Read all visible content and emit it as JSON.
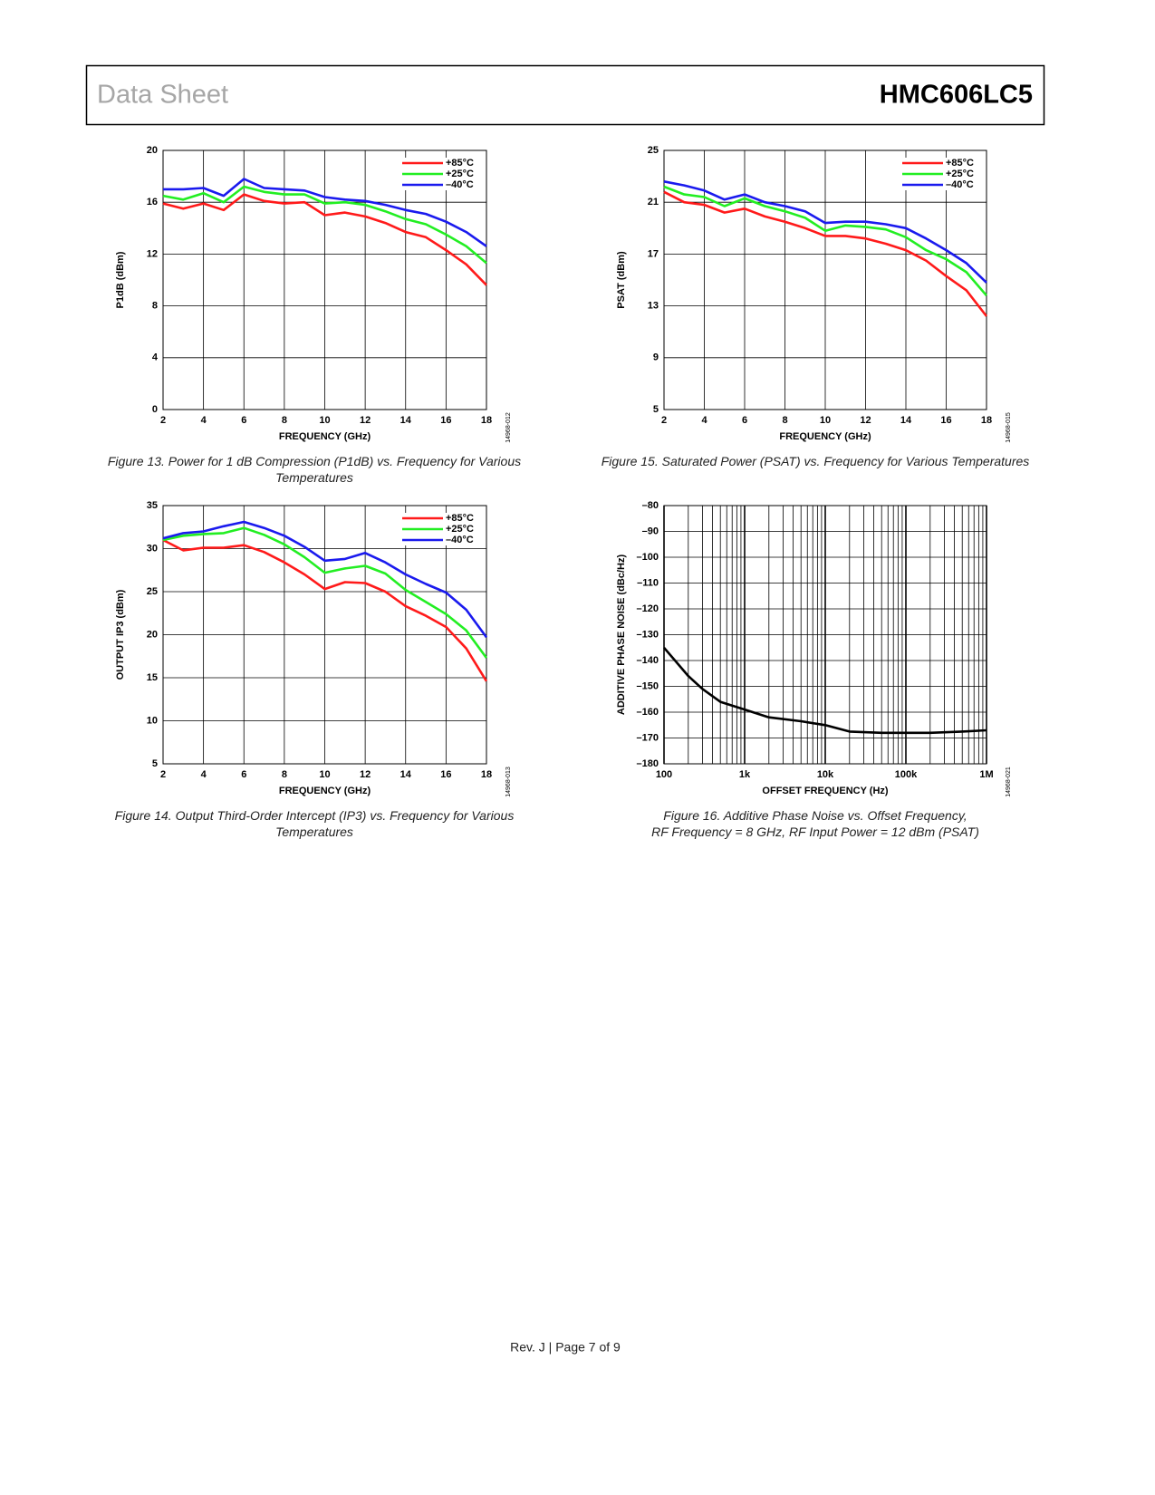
{
  "header": {
    "left": "Data Sheet",
    "right": "HMC606LC5"
  },
  "footer": "Rev. J | Page 7 of 9",
  "chart_data": [
    {
      "type": "line",
      "caption": [
        "Figure 13. Power for 1 dB Compression (P1dB) vs. Frequency for Various",
        "Temperatures"
      ],
      "figure_id": "14968-012",
      "xlabel": "FREQUENCY (GHz)",
      "ylabel": "P1dB (dBm)",
      "x": [
        2,
        3,
        4,
        5,
        6,
        7,
        8,
        9,
        10,
        11,
        12,
        13,
        14,
        15,
        16,
        17,
        18
      ],
      "xlim": [
        2,
        18
      ],
      "xticks": [
        2,
        4,
        6,
        8,
        10,
        12,
        14,
        16,
        18
      ],
      "ylim": [
        0,
        20
      ],
      "yticks": [
        0,
        4,
        8,
        12,
        16,
        20
      ],
      "grid": true,
      "legend": "upper right",
      "series": [
        {
          "name": "+85°C",
          "color": "#ff1a1a",
          "values": [
            15.9,
            15.5,
            15.9,
            15.4,
            16.6,
            16.1,
            15.9,
            16.0,
            15.0,
            15.2,
            14.9,
            14.4,
            13.7,
            13.3,
            12.3,
            11.2,
            9.6
          ]
        },
        {
          "name": "+25°C",
          "color": "#22ee22",
          "values": [
            16.5,
            16.2,
            16.7,
            16.0,
            17.2,
            16.8,
            16.6,
            16.6,
            15.9,
            16.0,
            15.8,
            15.3,
            14.7,
            14.3,
            13.5,
            12.6,
            11.3
          ]
        },
        {
          "name": "–40°C",
          "color": "#1a1aee",
          "values": [
            17.0,
            17.0,
            17.1,
            16.5,
            17.8,
            17.1,
            17.0,
            16.9,
            16.4,
            16.2,
            16.1,
            15.8,
            15.4,
            15.1,
            14.5,
            13.7,
            12.6
          ]
        }
      ]
    },
    {
      "type": "line",
      "caption": [
        "Figure 15. Saturated Power (PSAT) vs. Frequency for Various Temperatures"
      ],
      "figure_id": "14968-015",
      "xlabel": "FREQUENCY (GHz)",
      "ylabel": "PSAT (dBm)",
      "x": [
        2,
        3,
        4,
        5,
        6,
        7,
        8,
        9,
        10,
        11,
        12,
        13,
        14,
        15,
        16,
        17,
        18
      ],
      "xlim": [
        2,
        18
      ],
      "xticks": [
        2,
        4,
        6,
        8,
        10,
        12,
        14,
        16,
        18
      ],
      "ylim": [
        5,
        25
      ],
      "yticks": [
        5,
        9,
        13,
        17,
        21,
        25
      ],
      "grid": true,
      "legend": "upper right",
      "series": [
        {
          "name": "+85°C",
          "color": "#ff1a1a",
          "values": [
            21.8,
            21.0,
            20.8,
            20.2,
            20.5,
            19.9,
            19.5,
            19.0,
            18.4,
            18.4,
            18.2,
            17.8,
            17.3,
            16.5,
            15.3,
            14.2,
            12.2
          ]
        },
        {
          "name": "+25°C",
          "color": "#22ee22",
          "values": [
            22.2,
            21.6,
            21.4,
            20.7,
            21.3,
            20.7,
            20.3,
            19.8,
            18.8,
            19.2,
            19.1,
            18.9,
            18.3,
            17.3,
            16.6,
            15.6,
            13.8
          ]
        },
        {
          "name": "–40°C",
          "color": "#1a1aee",
          "values": [
            22.6,
            22.3,
            21.9,
            21.2,
            21.6,
            21.0,
            20.7,
            20.3,
            19.4,
            19.5,
            19.5,
            19.3,
            19.0,
            18.2,
            17.3,
            16.3,
            14.8
          ]
        }
      ]
    },
    {
      "type": "line",
      "caption": [
        "Figure 14. Output Third-Order Intercept (IP3) vs. Frequency for Various",
        "Temperatures"
      ],
      "figure_id": "14968-013",
      "xlabel": "FREQUENCY (GHz)",
      "ylabel": "OUTPUT IP3 (dBm)",
      "x": [
        2,
        3,
        4,
        5,
        6,
        7,
        8,
        9,
        10,
        11,
        12,
        13,
        14,
        15,
        16,
        17,
        18
      ],
      "xlim": [
        2,
        18
      ],
      "xticks": [
        2,
        4,
        6,
        8,
        10,
        12,
        14,
        16,
        18
      ],
      "ylim": [
        5,
        35
      ],
      "yticks": [
        5,
        10,
        15,
        20,
        25,
        30,
        35
      ],
      "grid": true,
      "legend": "upper right",
      "series": [
        {
          "name": "+85°C",
          "color": "#ff1a1a",
          "values": [
            31.0,
            29.8,
            30.1,
            30.1,
            30.4,
            29.6,
            28.4,
            27.0,
            25.3,
            26.1,
            26.0,
            25.0,
            23.3,
            22.2,
            20.9,
            18.4,
            14.6
          ]
        },
        {
          "name": "+25°C",
          "color": "#22ee22",
          "values": [
            31.0,
            31.5,
            31.7,
            31.8,
            32.4,
            31.6,
            30.5,
            29.0,
            27.2,
            27.7,
            28.0,
            27.1,
            25.2,
            23.8,
            22.4,
            20.5,
            17.3
          ]
        },
        {
          "name": "–40°C",
          "color": "#1a1aee",
          "values": [
            31.2,
            31.8,
            32.0,
            32.6,
            33.1,
            32.4,
            31.5,
            30.2,
            28.6,
            28.8,
            29.5,
            28.4,
            27.0,
            25.9,
            24.9,
            22.9,
            19.7
          ]
        }
      ]
    },
    {
      "type": "line",
      "caption": [
        "Figure 16. Additive Phase Noise vs. Offset Frequency,",
        "RF Frequency = 8 GHz, RF Input Power = 12 dBm (PSAT)"
      ],
      "figure_id": "14968-021",
      "xlabel": "OFFSET FREQUENCY (Hz)",
      "ylabel": "ADDITIVE PHASE NOISE (dBc/Hz)",
      "xscale": "log",
      "x": [
        100,
        200,
        300,
        500,
        1000,
        2000,
        5000,
        10000,
        20000,
        50000,
        100000,
        200000,
        500000,
        1000000
      ],
      "xlim": [
        100,
        1000000
      ],
      "xticks": [
        {
          "value": 100,
          "label": "100"
        },
        {
          "value": 1000,
          "label": "1k"
        },
        {
          "value": 10000,
          "label": "10k"
        },
        {
          "value": 100000,
          "label": "100k"
        },
        {
          "value": 1000000,
          "label": "1M"
        }
      ],
      "xminorticks": [
        200,
        300,
        400,
        500,
        600,
        700,
        800,
        900,
        2000,
        3000,
        4000,
        5000,
        6000,
        7000,
        8000,
        9000,
        20000,
        30000,
        40000,
        50000,
        60000,
        70000,
        80000,
        90000,
        200000,
        300000,
        400000,
        500000,
        600000,
        700000,
        800000,
        900000
      ],
      "ylim": [
        -180,
        -80
      ],
      "yticks": [
        {
          "value": -180,
          "label": "–180"
        },
        {
          "value": -170,
          "label": "–170"
        },
        {
          "value": -160,
          "label": "–160"
        },
        {
          "value": -150,
          "label": "–150"
        },
        {
          "value": -140,
          "label": "–140"
        },
        {
          "value": -130,
          "label": "–130"
        },
        {
          "value": -120,
          "label": "–120"
        },
        {
          "value": -110,
          "label": "–110"
        },
        {
          "value": -100,
          "label": "–100"
        },
        {
          "value": -90,
          "label": "–90"
        },
        {
          "value": -80,
          "label": "–80"
        }
      ],
      "grid": true,
      "color": "#000000",
      "values": [
        -135,
        -146,
        -151,
        -156,
        -159,
        -162,
        -163.5,
        -165,
        -167.5,
        -168,
        -168,
        -168,
        -167.5,
        -167
      ]
    }
  ]
}
